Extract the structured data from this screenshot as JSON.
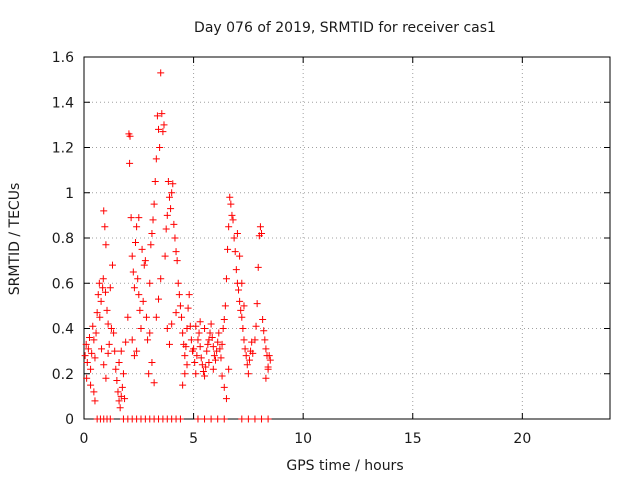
{
  "chart_data": {
    "type": "scatter",
    "title": "Day 076 of 2019, SRMTID for receiver cas1",
    "xlabel": "GPS time / hours",
    "ylabel": "SRMTID / TECUs",
    "xlim": [
      0,
      24
    ],
    "ylim": [
      0,
      1.6
    ],
    "x_ticks": [
      0,
      5,
      10,
      15,
      20
    ],
    "y_ticks": [
      0,
      0.2,
      0.4,
      0.6,
      0.8,
      1,
      1.2,
      1.4,
      1.6
    ],
    "x_tick_labels": [
      "0",
      "5",
      "10",
      "15",
      "20"
    ],
    "y_tick_labels": [
      "0",
      "0.2",
      "0.4",
      "0.6",
      "0.8",
      "1",
      "1.2",
      "1.4",
      "1.6"
    ],
    "grid": true,
    "marker": "+",
    "color": "#ff0000",
    "series": [
      {
        "name": "SRMTID",
        "points": [
          [
            0.05,
            0.28
          ],
          [
            0.1,
            0.33
          ],
          [
            0.15,
            0.25
          ],
          [
            0.2,
            0.31
          ],
          [
            0.25,
            0.36
          ],
          [
            0.3,
            0.22
          ],
          [
            0.35,
            0.29
          ],
          [
            0.4,
            0.41
          ],
          [
            0.45,
            0.35
          ],
          [
            0.5,
            0.27
          ],
          [
            0.55,
            0.38
          ],
          [
            0.6,
            0.47
          ],
          [
            0.65,
            0.55
          ],
          [
            0.7,
            0.6
          ],
          [
            0.12,
            0.18
          ],
          [
            0.3,
            0.15
          ],
          [
            0.45,
            0.12
          ],
          [
            0.5,
            0.08
          ],
          [
            0.72,
            0.45
          ],
          [
            0.78,
            0.52
          ],
          [
            0.85,
            0.58
          ],
          [
            0.9,
            0.92
          ],
          [
            0.95,
            0.85
          ],
          [
            1.0,
            0.77
          ],
          [
            0.88,
            0.62
          ],
          [
            0.98,
            0.56
          ],
          [
            1.05,
            0.48
          ],
          [
            1.1,
            0.42
          ],
          [
            1.2,
            0.58
          ],
          [
            1.25,
            0.4
          ],
          [
            1.3,
            0.68
          ],
          [
            1.35,
            0.38
          ],
          [
            0.8,
            0.31
          ],
          [
            0.9,
            0.24
          ],
          [
            1.0,
            0.18
          ],
          [
            1.1,
            0.29
          ],
          [
            1.15,
            0.33
          ],
          [
            1.4,
            0.3
          ],
          [
            1.45,
            0.22
          ],
          [
            1.5,
            0.17
          ],
          [
            1.55,
            0.12
          ],
          [
            1.6,
            0.08
          ],
          [
            1.65,
            0.05
          ],
          [
            1.7,
            0.1
          ],
          [
            1.75,
            0.14
          ],
          [
            1.8,
            0.2
          ],
          [
            1.85,
            0.09
          ],
          [
            1.6,
            0.25
          ],
          [
            1.7,
            0.3
          ],
          [
            1.9,
            0.34
          ],
          [
            2.0,
            0.45
          ],
          [
            2.05,
            1.26
          ],
          [
            2.1,
            1.25
          ],
          [
            2.08,
            1.13
          ],
          [
            2.15,
            0.89
          ],
          [
            2.2,
            0.72
          ],
          [
            2.25,
            0.65
          ],
          [
            2.3,
            0.58
          ],
          [
            2.35,
            0.78
          ],
          [
            2.4,
            0.85
          ],
          [
            2.45,
            0.62
          ],
          [
            2.5,
            0.55
          ],
          [
            2.55,
            0.48
          ],
          [
            2.6,
            0.4
          ],
          [
            2.2,
            0.35
          ],
          [
            2.3,
            0.28
          ],
          [
            2.4,
            0.3
          ],
          [
            2.5,
            0.89
          ],
          [
            2.65,
            0.75
          ],
          [
            2.7,
            0.52
          ],
          [
            2.75,
            0.68
          ],
          [
            2.8,
            0.7
          ],
          [
            2.85,
            0.45
          ],
          [
            2.9,
            0.35
          ],
          [
            2.95,
            0.2
          ],
          [
            3.0,
            0.6
          ],
          [
            3.05,
            0.77
          ],
          [
            3.1,
            0.82
          ],
          [
            3.15,
            0.88
          ],
          [
            3.2,
            0.95
          ],
          [
            3.25,
            1.05
          ],
          [
            3.3,
            1.15
          ],
          [
            3.35,
            1.34
          ],
          [
            3.4,
            1.28
          ],
          [
            3.45,
            1.2
          ],
          [
            3.5,
            1.53
          ],
          [
            3.55,
            1.35
          ],
          [
            3.6,
            1.27
          ],
          [
            3.65,
            1.3
          ],
          [
            3.0,
            0.38
          ],
          [
            3.1,
            0.25
          ],
          [
            3.2,
            0.16
          ],
          [
            3.3,
            0.45
          ],
          [
            3.4,
            0.53
          ],
          [
            3.5,
            0.62
          ],
          [
            3.7,
            0.72
          ],
          [
            3.75,
            0.84
          ],
          [
            3.8,
            0.9
          ],
          [
            3.85,
            1.05
          ],
          [
            3.9,
            0.98
          ],
          [
            3.95,
            0.93
          ],
          [
            4.0,
            1.0
          ],
          [
            4.05,
            1.04
          ],
          [
            4.1,
            0.86
          ],
          [
            4.15,
            0.8
          ],
          [
            4.2,
            0.74
          ],
          [
            4.25,
            0.7
          ],
          [
            4.3,
            0.6
          ],
          [
            4.35,
            0.55
          ],
          [
            4.4,
            0.5
          ],
          [
            3.8,
            0.4
          ],
          [
            3.9,
            0.33
          ],
          [
            4.0,
            0.42
          ],
          [
            4.2,
            0.47
          ],
          [
            4.45,
            0.45
          ],
          [
            4.5,
            0.38
          ],
          [
            4.55,
            0.33
          ],
          [
            4.6,
            0.28
          ],
          [
            4.65,
            0.32
          ],
          [
            4.7,
            0.4
          ],
          [
            4.75,
            0.49
          ],
          [
            4.8,
            0.55
          ],
          [
            4.85,
            0.41
          ],
          [
            4.9,
            0.35
          ],
          [
            4.95,
            0.3
          ],
          [
            4.5,
            0.15
          ],
          [
            4.6,
            0.2
          ],
          [
            4.7,
            0.24
          ],
          [
            5.0,
            0.31
          ],
          [
            5.05,
            0.25
          ],
          [
            5.1,
            0.2
          ],
          [
            5.15,
            0.28
          ],
          [
            5.2,
            0.35
          ],
          [
            5.25,
            0.38
          ],
          [
            5.3,
            0.32
          ],
          [
            5.35,
            0.27
          ],
          [
            5.4,
            0.24
          ],
          [
            5.45,
            0.21
          ],
          [
            5.5,
            0.19
          ],
          [
            5.55,
            0.23
          ],
          [
            5.6,
            0.3
          ],
          [
            5.65,
            0.33
          ],
          [
            5.7,
            0.35
          ],
          [
            5.75,
            0.38
          ],
          [
            5.8,
            0.42
          ],
          [
            5.85,
            0.36
          ],
          [
            5.9,
            0.32
          ],
          [
            5.95,
            0.28
          ],
          [
            5.1,
            0.41
          ],
          [
            5.3,
            0.43
          ],
          [
            5.5,
            0.4
          ],
          [
            5.7,
            0.25
          ],
          [
            5.9,
            0.22
          ],
          [
            6.0,
            0.26
          ],
          [
            6.05,
            0.3
          ],
          [
            6.1,
            0.34
          ],
          [
            6.15,
            0.38
          ],
          [
            6.2,
            0.31
          ],
          [
            6.25,
            0.27
          ],
          [
            6.3,
            0.33
          ],
          [
            6.35,
            0.4
          ],
          [
            6.4,
            0.44
          ],
          [
            6.45,
            0.5
          ],
          [
            6.5,
            0.62
          ],
          [
            6.55,
            0.75
          ],
          [
            6.6,
            0.85
          ],
          [
            6.65,
            0.98
          ],
          [
            6.7,
            0.95
          ],
          [
            6.75,
            0.9
          ],
          [
            6.8,
            0.88
          ],
          [
            6.85,
            0.8
          ],
          [
            6.9,
            0.74
          ],
          [
            6.95,
            0.66
          ],
          [
            6.3,
            0.19
          ],
          [
            6.4,
            0.14
          ],
          [
            6.5,
            0.09
          ],
          [
            6.6,
            0.22
          ],
          [
            7.0,
            0.6
          ],
          [
            7.05,
            0.57
          ],
          [
            7.1,
            0.52
          ],
          [
            7.15,
            0.48
          ],
          [
            7.2,
            0.45
          ],
          [
            7.25,
            0.4
          ],
          [
            7.3,
            0.35
          ],
          [
            7.35,
            0.31
          ],
          [
            7.4,
            0.28
          ],
          [
            7.45,
            0.24
          ],
          [
            7.5,
            0.2
          ],
          [
            7.55,
            0.26
          ],
          [
            7.6,
            0.3
          ],
          [
            7.65,
            0.34
          ],
          [
            7.7,
            0.29
          ],
          [
            7.0,
            0.82
          ],
          [
            7.1,
            0.72
          ],
          [
            7.2,
            0.6
          ],
          [
            7.3,
            0.5
          ],
          [
            7.8,
            0.35
          ],
          [
            7.85,
            0.41
          ],
          [
            7.9,
            0.51
          ],
          [
            7.95,
            0.67
          ],
          [
            8.0,
            0.81
          ],
          [
            8.05,
            0.85
          ],
          [
            8.1,
            0.82
          ],
          [
            8.15,
            0.44
          ],
          [
            8.2,
            0.39
          ],
          [
            8.25,
            0.35
          ],
          [
            8.3,
            0.31
          ],
          [
            8.35,
            0.28
          ],
          [
            8.4,
            0.23
          ],
          [
            8.45,
            0.28
          ],
          [
            8.5,
            0.26
          ],
          [
            8.3,
            0.18
          ],
          [
            8.4,
            0.22
          ],
          [
            0.6,
            0
          ],
          [
            0.75,
            0
          ],
          [
            0.9,
            0
          ],
          [
            1.05,
            0
          ],
          [
            1.2,
            0
          ],
          [
            1.8,
            0
          ],
          [
            2.0,
            0
          ],
          [
            2.2,
            0
          ],
          [
            2.4,
            0
          ],
          [
            2.6,
            0
          ],
          [
            2.8,
            0
          ],
          [
            3.0,
            0
          ],
          [
            3.2,
            0
          ],
          [
            3.4,
            0
          ],
          [
            3.6,
            0
          ],
          [
            3.8,
            0
          ],
          [
            4.0,
            0
          ],
          [
            4.2,
            0
          ],
          [
            4.4,
            0
          ],
          [
            5.2,
            0
          ],
          [
            5.5,
            0
          ],
          [
            5.8,
            0
          ],
          [
            6.1,
            0
          ],
          [
            6.4,
            0
          ],
          [
            7.2,
            0
          ],
          [
            7.5,
            0
          ],
          [
            7.8,
            0
          ],
          [
            8.1,
            0
          ],
          [
            8.4,
            0
          ]
        ]
      }
    ]
  }
}
